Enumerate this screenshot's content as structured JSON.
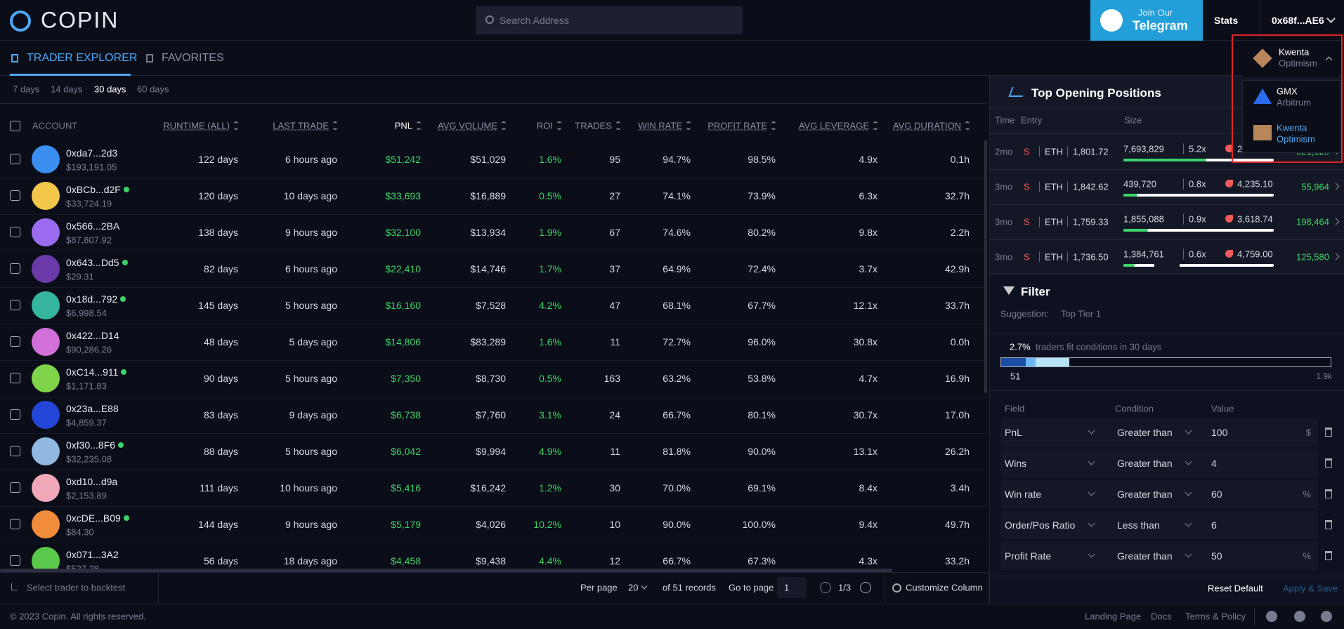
{
  "header": {
    "logo": "COPIN",
    "search_placeholder": "Search Address",
    "telegram_small": "Join Our",
    "telegram_big": "Telegram",
    "stats": "Stats",
    "wallet": "0x68f...AE6"
  },
  "tabs": [
    "TRADER EXPLORER",
    "FAVORITES"
  ],
  "periods": {
    "options": [
      "7 days",
      "14 days",
      "30 days",
      "60 days"
    ],
    "active": 2
  },
  "table": {
    "columns": [
      "ACCOUNT",
      "RUNTIME (ALL)",
      "LAST TRADE",
      "PNL",
      "AVG VOLUME",
      "ROI",
      "TRADES",
      "WIN RATE",
      "PROFIT RATE",
      "AVG LEVERAGE",
      "AVG DURATION"
    ],
    "rows": [
      {
        "account": "0xda7...2d3",
        "balance": "$193,191.05",
        "online": false,
        "cells": [
          "122 days",
          "6 hours ago",
          "$51,242",
          "$51,029",
          "1.6%",
          "95",
          "94.7%",
          "98.5%",
          "4.9x",
          "0.1h"
        ]
      },
      {
        "account": "0xBCb...d2F",
        "balance": "$33,724.19",
        "online": true,
        "cells": [
          "120 days",
          "10 days ago",
          "$33,693",
          "$16,889",
          "0.5%",
          "27",
          "74.1%",
          "73.9%",
          "6.3x",
          "32.7h"
        ]
      },
      {
        "account": "0x566...2BA",
        "balance": "$87,807.92",
        "online": false,
        "cells": [
          "138 days",
          "9 hours ago",
          "$32,100",
          "$13,934",
          "1.9%",
          "67",
          "74.6%",
          "80.2%",
          "9.8x",
          "2.2h"
        ]
      },
      {
        "account": "0x643...Dd5",
        "balance": "$29.31",
        "online": true,
        "cells": [
          "82 days",
          "6 hours ago",
          "$22,410",
          "$14,746",
          "1.7%",
          "37",
          "64.9%",
          "72.4%",
          "3.7x",
          "42.9h"
        ]
      },
      {
        "account": "0x18d...792",
        "balance": "$6,998.54",
        "online": true,
        "cells": [
          "145 days",
          "5 hours ago",
          "$16,160",
          "$7,528",
          "4.2%",
          "47",
          "68.1%",
          "67.7%",
          "12.1x",
          "33.7h"
        ]
      },
      {
        "account": "0x422...D14",
        "balance": "$90,286.26",
        "online": false,
        "cells": [
          "48 days",
          "5 days ago",
          "$14,806",
          "$83,289",
          "1.6%",
          "11",
          "72.7%",
          "96.0%",
          "30.8x",
          "0.0h"
        ]
      },
      {
        "account": "0xC14...911",
        "balance": "$1,171.83",
        "online": true,
        "cells": [
          "90 days",
          "5 hours ago",
          "$7,350",
          "$8,730",
          "0.5%",
          "163",
          "63.2%",
          "53.8%",
          "4.7x",
          "16.9h"
        ]
      },
      {
        "account": "0x23a...E88",
        "balance": "$4,859.37",
        "online": false,
        "cells": [
          "83 days",
          "9 days ago",
          "$6,738",
          "$7,760",
          "3.1%",
          "24",
          "66.7%",
          "80.1%",
          "30.7x",
          "17.0h"
        ]
      },
      {
        "account": "0xf30...8F6",
        "balance": "$32,235.08",
        "online": true,
        "cells": [
          "88 days",
          "5 hours ago",
          "$6,042",
          "$9,994",
          "4.9%",
          "11",
          "81.8%",
          "90.0%",
          "13.1x",
          "26.2h"
        ]
      },
      {
        "account": "0xd10...d9a",
        "balance": "$2,153.89",
        "online": false,
        "cells": [
          "111 days",
          "10 hours ago",
          "$5,416",
          "$16,242",
          "1.2%",
          "30",
          "70.0%",
          "69.1%",
          "8.4x",
          "3.4h"
        ]
      },
      {
        "account": "0xcDE...B09",
        "balance": "$84.30",
        "online": true,
        "cells": [
          "144 days",
          "9 hours ago",
          "$5,179",
          "$4,026",
          "10.2%",
          "10",
          "90.0%",
          "100.0%",
          "9.4x",
          "49.7h"
        ]
      },
      {
        "account": "0x071...3A2",
        "balance": "$527.28",
        "online": false,
        "cells": [
          "56 days",
          "18 days ago",
          "$4,458",
          "$9,438",
          "4.4%",
          "12",
          "66.7%",
          "67.3%",
          "4.3x",
          "33.2h"
        ]
      }
    ]
  },
  "table_footer": {
    "backtest": "Select trader to backtest",
    "per_page_label": "Per page",
    "per_page": "20",
    "records": "of 51 records",
    "go_to_label": "Go to page",
    "go_to": "1",
    "pages": "1/3",
    "customize": "Customize Column"
  },
  "positions": {
    "title": "Top Opening Positions",
    "columns": [
      "Time",
      "Entry",
      "Size"
    ],
    "rows": [
      {
        "time": "2mo",
        "side": "S",
        "token": "ETH",
        "entry": "1,801.72",
        "size": "7,693,829",
        "leverage": "5.2x",
        "liq": "2,",
        "pnl": "021,125"
      },
      {
        "time": "3mo",
        "side": "S",
        "token": "ETH",
        "entry": "1,842.62",
        "size": "439,720",
        "leverage": "0.8x",
        "liq": "4,235.10",
        "pnl": "55,964"
      },
      {
        "time": "3mo",
        "side": "S",
        "token": "ETH",
        "entry": "1,759.33",
        "size": "1,855,088",
        "leverage": "0.9x",
        "liq": "3,618.74",
        "pnl": "198,464"
      },
      {
        "time": "3mo",
        "side": "S",
        "token": "ETH",
        "entry": "1,736.50",
        "size": "1,384,761",
        "leverage": "0.6x",
        "liq": "4,759.00",
        "pnl": "125,580"
      }
    ]
  },
  "filter": {
    "title": "Filter",
    "suggestion_label": "Suggestion:",
    "suggestion": "Top Tier 1",
    "percent": "2.7%",
    "fit_text": "traders fit conditions in 30 days",
    "bar_min": "51",
    "bar_max": "1.9k",
    "columns": [
      "Field",
      "Condition",
      "Value"
    ],
    "rows": [
      {
        "field": "PnL",
        "condition": "Greater than",
        "value": "100",
        "unit": "$"
      },
      {
        "field": "Wins",
        "condition": "Greater than",
        "value": "4"
      },
      {
        "field": "Win rate",
        "condition": "Greater than",
        "value": "60",
        "unit": "%"
      },
      {
        "field": "Order/Pos Ratio",
        "condition": "Less than",
        "value": "6"
      },
      {
        "field": "Profit Rate",
        "condition": "Greater than",
        "value": "50",
        "unit": "%"
      }
    ],
    "reset": "Reset Default",
    "apply": "Apply & Save"
  },
  "dropdown": {
    "selected": {
      "name": "Kwenta",
      "network": "Optimism"
    },
    "options": [
      {
        "name": "GMX",
        "network": "Arbitrum"
      },
      {
        "name": "Kwenta",
        "network": "Optimism"
      }
    ],
    "active": 1
  },
  "footer": {
    "copyright": "© 2023 Copin. All rights reserved.",
    "links": [
      "Landing Page",
      "Docs",
      "Terms & Policy"
    ]
  }
}
